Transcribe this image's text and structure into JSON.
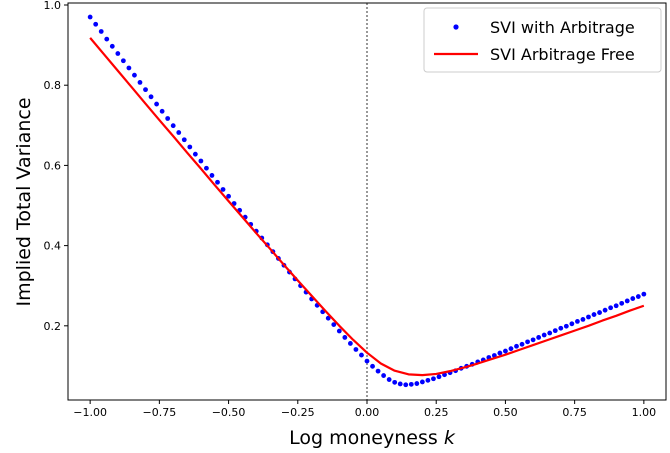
{
  "chart_data": {
    "type": "line",
    "title": "",
    "xlabel": "Log moneyness",
    "xlabel_var": "k",
    "ylabel": "Implied Total Variance",
    "xlim": [
      -1.08,
      1.08
    ],
    "ylim": [
      0.015,
      1.005
    ],
    "x_ticks": [
      -1.0,
      -0.75,
      -0.5,
      -0.25,
      0.0,
      0.25,
      0.5,
      0.75,
      1.0
    ],
    "x_tick_labels": [
      "−1.00",
      "−0.75",
      "−0.50",
      "−0.25",
      "0.00",
      "0.25",
      "0.50",
      "0.75",
      "1.00"
    ],
    "y_ticks": [
      0.2,
      0.4,
      0.6,
      0.8,
      1.0
    ],
    "y_tick_labels": [
      "0.2",
      "0.4",
      "0.6",
      "0.8",
      "1.0"
    ],
    "vline_x": 0.0,
    "grid": false,
    "legend_position": "top-right",
    "series": [
      {
        "name": "SVI with Arbitrage",
        "style": "dots",
        "color": "#0000ff",
        "x": [
          -1.0,
          -0.98,
          -0.96,
          -0.94,
          -0.92,
          -0.9,
          -0.88,
          -0.86,
          -0.84,
          -0.82,
          -0.8,
          -0.78,
          -0.76,
          -0.74,
          -0.72,
          -0.7,
          -0.68,
          -0.66,
          -0.64,
          -0.62,
          -0.6,
          -0.58,
          -0.56,
          -0.54,
          -0.52,
          -0.5,
          -0.48,
          -0.46,
          -0.44,
          -0.42,
          -0.4,
          -0.38,
          -0.36,
          -0.34,
          -0.32,
          -0.3,
          -0.28,
          -0.26,
          -0.24,
          -0.22,
          -0.2,
          -0.18,
          -0.16,
          -0.14,
          -0.12,
          -0.1,
          -0.08,
          -0.06,
          -0.04,
          -0.02,
          0.0,
          0.02,
          0.04,
          0.06,
          0.08,
          0.1,
          0.12,
          0.14,
          0.16,
          0.18,
          0.2,
          0.22,
          0.24,
          0.26,
          0.28,
          0.3,
          0.32,
          0.34,
          0.36,
          0.38,
          0.4,
          0.42,
          0.44,
          0.46,
          0.48,
          0.5,
          0.52,
          0.54,
          0.56,
          0.58,
          0.6,
          0.62,
          0.64,
          0.66,
          0.68,
          0.7,
          0.72,
          0.74,
          0.76,
          0.78,
          0.8,
          0.82,
          0.84,
          0.86,
          0.88,
          0.9,
          0.92,
          0.94,
          0.96,
          0.98,
          1.0
        ],
        "y": [
          0.97,
          0.952,
          0.934,
          0.915,
          0.897,
          0.879,
          0.861,
          0.843,
          0.825,
          0.807,
          0.789,
          0.771,
          0.753,
          0.735,
          0.717,
          0.699,
          0.682,
          0.664,
          0.646,
          0.628,
          0.611,
          0.593,
          0.575,
          0.558,
          0.54,
          0.523,
          0.505,
          0.488,
          0.471,
          0.453,
          0.436,
          0.419,
          0.402,
          0.385,
          0.368,
          0.351,
          0.334,
          0.317,
          0.3,
          0.284,
          0.267,
          0.251,
          0.235,
          0.219,
          0.203,
          0.187,
          0.171,
          0.156,
          0.141,
          0.127,
          0.112,
          0.099,
          0.087,
          0.076,
          0.066,
          0.059,
          0.055,
          0.053,
          0.054,
          0.056,
          0.06,
          0.064,
          0.068,
          0.073,
          0.078,
          0.083,
          0.088,
          0.094,
          0.099,
          0.104,
          0.11,
          0.115,
          0.121,
          0.126,
          0.132,
          0.137,
          0.143,
          0.149,
          0.154,
          0.16,
          0.165,
          0.171,
          0.177,
          0.182,
          0.188,
          0.194,
          0.199,
          0.205,
          0.211,
          0.216,
          0.222,
          0.228,
          0.233,
          0.239,
          0.245,
          0.25,
          0.256,
          0.262,
          0.268,
          0.273,
          0.279
        ]
      },
      {
        "name": "SVI Arbitrage Free",
        "style": "line",
        "color": "#ff0000",
        "x": [
          -1.0,
          -0.95,
          -0.9,
          -0.85,
          -0.8,
          -0.75,
          -0.7,
          -0.65,
          -0.6,
          -0.55,
          -0.5,
          -0.45,
          -0.4,
          -0.35,
          -0.3,
          -0.25,
          -0.2,
          -0.15,
          -0.1,
          -0.05,
          0.0,
          0.05,
          0.1,
          0.15,
          0.2,
          0.25,
          0.3,
          0.35,
          0.4,
          0.45,
          0.5,
          0.55,
          0.6,
          0.65,
          0.7,
          0.75,
          0.8,
          0.85,
          0.9,
          0.95,
          1.0
        ],
        "y": [
          0.918,
          0.877,
          0.836,
          0.795,
          0.754,
          0.713,
          0.673,
          0.632,
          0.592,
          0.551,
          0.511,
          0.471,
          0.431,
          0.392,
          0.352,
          0.313,
          0.275,
          0.237,
          0.2,
          0.165,
          0.133,
          0.106,
          0.088,
          0.079,
          0.077,
          0.08,
          0.087,
          0.096,
          0.106,
          0.117,
          0.128,
          0.14,
          0.152,
          0.164,
          0.176,
          0.188,
          0.2,
          0.213,
          0.225,
          0.238,
          0.25
        ]
      }
    ]
  }
}
